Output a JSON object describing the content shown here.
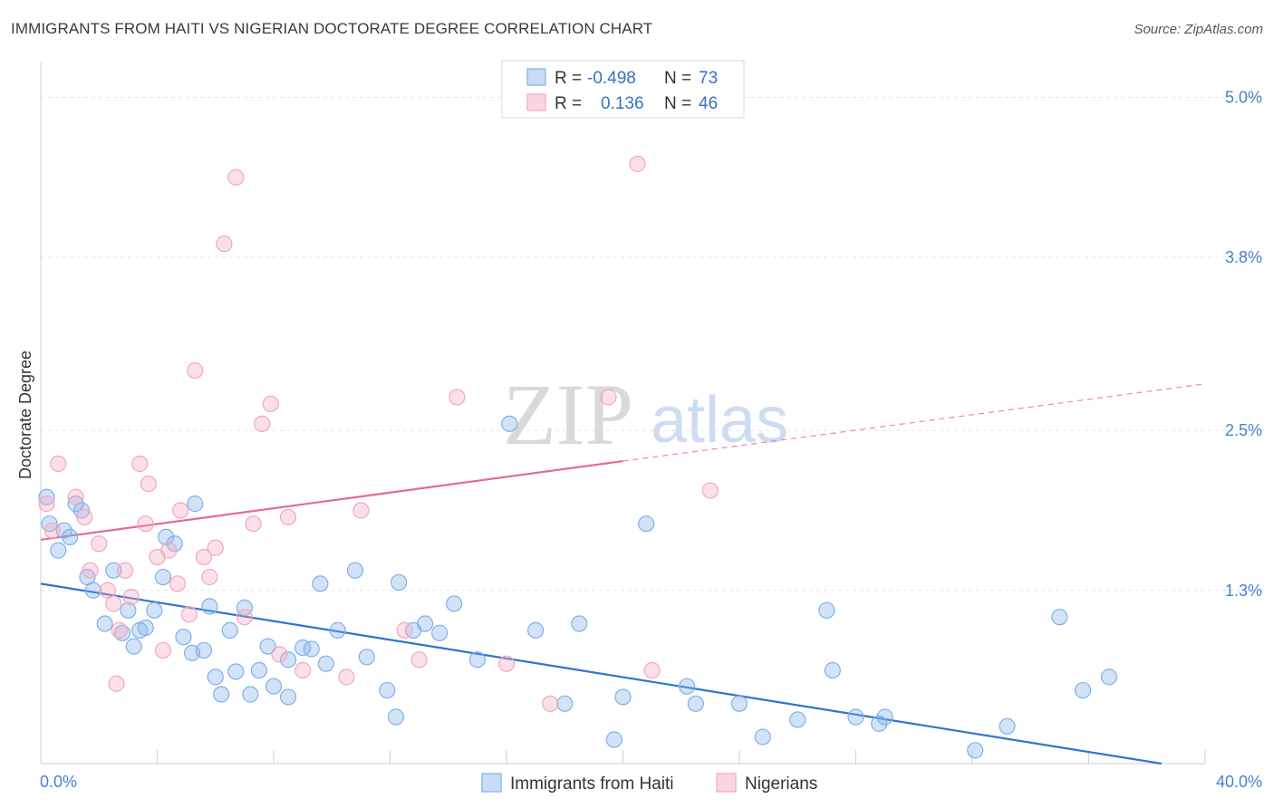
{
  "header": {
    "title": "IMMIGRANTS FROM HAITI VS NIGERIAN DOCTORATE DEGREE CORRELATION CHART",
    "source": "Source: ZipAtlas.com"
  },
  "watermark": {
    "zip": "ZIP",
    "atlas": "atlas"
  },
  "legend_top": {
    "rows": [
      {
        "r_label": "R =",
        "r_value": "-0.498",
        "n_label": "N =",
        "n_value": "73",
        "color": "#7fb0ea"
      },
      {
        "r_label": "R =",
        "r_value": "0.136",
        "n_label": "N =",
        "n_value": "46",
        "color": "#f3a6bf"
      }
    ]
  },
  "legend_bottom": {
    "items": [
      {
        "label": "Immigrants from Haiti",
        "color": "#7fb0ea"
      },
      {
        "label": "Nigerians",
        "color": "#f3a6bf"
      }
    ]
  },
  "chart_data": {
    "type": "scatter",
    "title": "IMMIGRANTS FROM HAITI VS NIGERIAN DOCTORATE DEGREE CORRELATION CHART",
    "xlabel": "",
    "ylabel": "Doctorate Degree",
    "xlim": [
      0,
      40
    ],
    "ylim": [
      0,
      5.2
    ],
    "x_tick_labels": [
      "0.0%",
      "40.0%"
    ],
    "y_ticks": [
      1.3,
      2.5,
      3.8,
      5.0
    ],
    "y_tick_labels": [
      "1.3%",
      "2.5%",
      "3.8%",
      "5.0%"
    ],
    "grid": true,
    "series": [
      {
        "name": "Immigrants from Haiti",
        "color": "#7fb0ea",
        "line_color": "#2f74d0",
        "trend": {
          "x": [
            0,
            38.5
          ],
          "y": [
            1.35,
            0.0
          ]
        },
        "points": [
          [
            0.2,
            2.0
          ],
          [
            0.3,
            1.8
          ],
          [
            0.6,
            1.6
          ],
          [
            0.8,
            1.75
          ],
          [
            1.0,
            1.7
          ],
          [
            1.2,
            1.95
          ],
          [
            1.4,
            1.9
          ],
          [
            1.6,
            1.4
          ],
          [
            1.8,
            1.3
          ],
          [
            2.2,
            1.05
          ],
          [
            2.5,
            1.45
          ],
          [
            2.8,
            0.98
          ],
          [
            3.0,
            1.15
          ],
          [
            3.2,
            0.88
          ],
          [
            3.4,
            1.0
          ],
          [
            3.6,
            1.02
          ],
          [
            3.9,
            1.15
          ],
          [
            4.2,
            1.4
          ],
          [
            4.3,
            1.7
          ],
          [
            4.6,
            1.65
          ],
          [
            4.9,
            0.95
          ],
          [
            5.2,
            0.83
          ],
          [
            5.3,
            1.95
          ],
          [
            5.6,
            0.85
          ],
          [
            5.8,
            1.18
          ],
          [
            6.0,
            0.65
          ],
          [
            6.2,
            0.52
          ],
          [
            6.5,
            1.0
          ],
          [
            6.7,
            0.69
          ],
          [
            7.0,
            1.17
          ],
          [
            7.2,
            0.52
          ],
          [
            7.5,
            0.7
          ],
          [
            7.8,
            0.88
          ],
          [
            8.0,
            0.58
          ],
          [
            8.5,
            0.5
          ],
          [
            8.5,
            0.78
          ],
          [
            9.0,
            0.87
          ],
          [
            9.3,
            0.86
          ],
          [
            9.6,
            1.35
          ],
          [
            9.8,
            0.75
          ],
          [
            10.2,
            1.0
          ],
          [
            10.8,
            1.45
          ],
          [
            11.2,
            0.8
          ],
          [
            11.9,
            0.55
          ],
          [
            12.2,
            0.35
          ],
          [
            12.3,
            1.36
          ],
          [
            12.8,
            1.0
          ],
          [
            13.2,
            1.05
          ],
          [
            13.7,
            0.98
          ],
          [
            14.2,
            1.2
          ],
          [
            15.0,
            0.78
          ],
          [
            16.1,
            2.55
          ],
          [
            17.0,
            1.0
          ],
          [
            18.0,
            0.45
          ],
          [
            18.5,
            1.05
          ],
          [
            19.7,
            0.18
          ],
          [
            20.0,
            0.5
          ],
          [
            20.8,
            1.8
          ],
          [
            22.2,
            0.58
          ],
          [
            22.5,
            0.45
          ],
          [
            24.0,
            0.45
          ],
          [
            24.8,
            0.2
          ],
          [
            26.0,
            0.33
          ],
          [
            27.0,
            1.15
          ],
          [
            27.2,
            0.7
          ],
          [
            28.0,
            0.35
          ],
          [
            28.8,
            0.3
          ],
          [
            29.0,
            0.35
          ],
          [
            32.1,
            0.1
          ],
          [
            33.2,
            0.28
          ],
          [
            35.8,
            0.55
          ],
          [
            35.0,
            1.1
          ],
          [
            36.7,
            0.65
          ]
        ]
      },
      {
        "name": "Nigerians",
        "color": "#f3a6bf",
        "line_color": "#e56a92",
        "trend": {
          "x": [
            0,
            20
          ],
          "y": [
            1.68,
            2.27
          ],
          "dashed_to": [
            40,
            2.85
          ]
        },
        "points": [
          [
            0.2,
            1.95
          ],
          [
            0.4,
            1.75
          ],
          [
            0.6,
            2.25
          ],
          [
            1.2,
            2.0
          ],
          [
            1.5,
            1.85
          ],
          [
            1.7,
            1.45
          ],
          [
            2.0,
            1.65
          ],
          [
            2.3,
            1.3
          ],
          [
            2.5,
            1.2
          ],
          [
            2.7,
            1.0
          ],
          [
            2.9,
            1.45
          ],
          [
            3.1,
            1.25
          ],
          [
            3.4,
            2.25
          ],
          [
            3.6,
            1.8
          ],
          [
            3.7,
            2.1
          ],
          [
            4.0,
            1.55
          ],
          [
            4.2,
            0.85
          ],
          [
            4.4,
            1.6
          ],
          [
            4.7,
            1.35
          ],
          [
            4.8,
            1.9
          ],
          [
            5.1,
            1.12
          ],
          [
            5.3,
            2.95
          ],
          [
            5.6,
            1.55
          ],
          [
            5.8,
            1.4
          ],
          [
            6.0,
            1.62
          ],
          [
            6.3,
            3.9
          ],
          [
            6.7,
            4.4
          ],
          [
            7.0,
            1.1
          ],
          [
            7.3,
            1.8
          ],
          [
            7.6,
            2.55
          ],
          [
            7.9,
            2.7
          ],
          [
            8.2,
            0.82
          ],
          [
            8.5,
            1.85
          ],
          [
            9.0,
            0.7
          ],
          [
            10.5,
            0.65
          ],
          [
            11.0,
            1.9
          ],
          [
            12.5,
            1.0
          ],
          [
            13.0,
            0.78
          ],
          [
            14.3,
            2.75
          ],
          [
            16.0,
            0.75
          ],
          [
            17.5,
            0.45
          ],
          [
            19.5,
            2.75
          ],
          [
            20.5,
            4.5
          ],
          [
            21.0,
            0.7
          ],
          [
            23.0,
            2.05
          ],
          [
            2.6,
            0.6
          ]
        ]
      }
    ]
  }
}
